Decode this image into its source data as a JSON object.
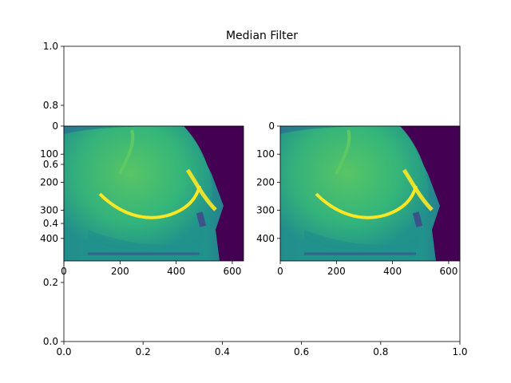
{
  "figure": {
    "title": "Median Filter"
  },
  "chart_data": [
    {
      "type": "heatmap",
      "role": "outer-axes",
      "title": "Median Filter",
      "xlim": [
        0.0,
        1.0
      ],
      "ylim": [
        0.0,
        1.0
      ],
      "x_ticks": [
        "0.0",
        "0.2",
        "0.4",
        "0.6",
        "0.8",
        "1.0"
      ],
      "y_ticks": [
        "0.0",
        "0.2",
        "0.4",
        "0.6",
        "0.8",
        "1.0"
      ],
      "grid": false
    },
    {
      "type": "heatmap",
      "role": "left-image",
      "colormap": "viridis",
      "image_width": 640,
      "image_height": 480,
      "x_ticks": [
        "0",
        "200",
        "400",
        "600"
      ],
      "y_ticks": [
        "0",
        "100",
        "200",
        "300",
        "400"
      ],
      "colors": [
        "#440154",
        "#3b528b",
        "#21918c",
        "#5ec962",
        "#fde725"
      ]
    },
    {
      "type": "heatmap",
      "role": "right-image",
      "colormap": "viridis",
      "image_width": 640,
      "image_height": 480,
      "x_ticks": [
        "0",
        "200",
        "400",
        "600"
      ],
      "y_ticks": [
        "0",
        "100",
        "200",
        "300",
        "400"
      ],
      "colors": [
        "#440154",
        "#3b528b",
        "#21918c",
        "#5ec962",
        "#fde725"
      ]
    }
  ]
}
